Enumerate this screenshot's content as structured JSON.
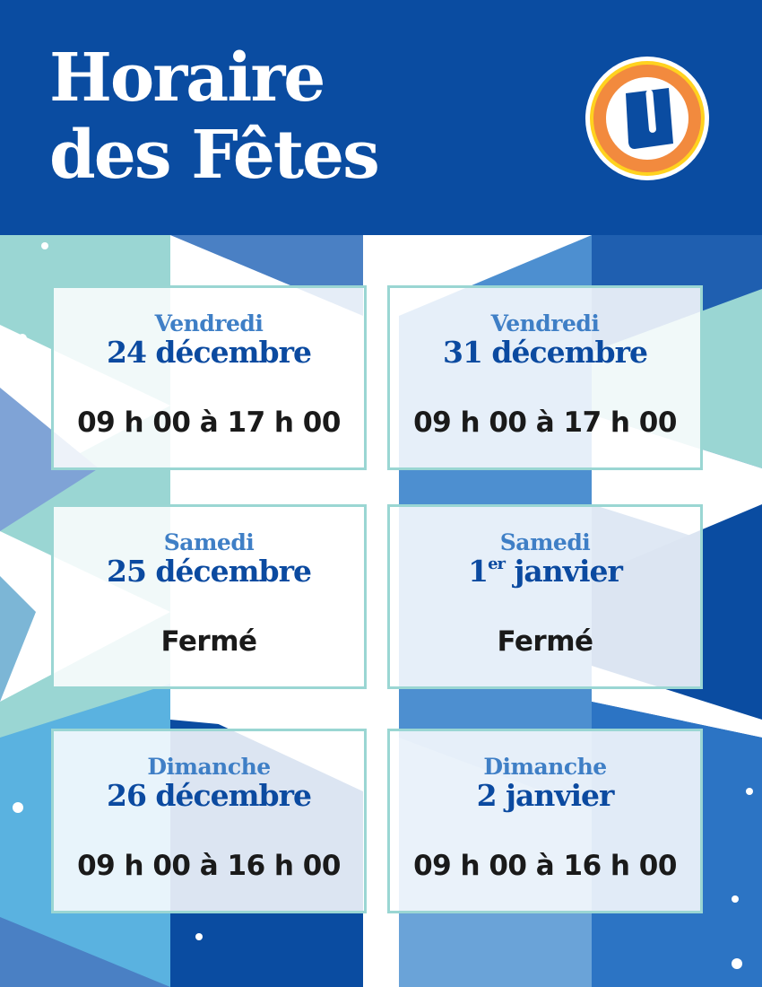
{
  "header": {
    "title_line1": "Horaire",
    "title_line2": "des Fêtes",
    "logo_letter": "U"
  },
  "colors": {
    "brand_blue": "#0a4ca1",
    "day_blue": "#3f7fc6",
    "date_blue": "#0b4aa0",
    "card_border": "#9ad6d3",
    "logo_orange": "#f28a3e",
    "logo_yellow": "#ffd21f"
  },
  "cards": [
    {
      "day": "Vendredi",
      "date": "24 décembre",
      "hours": "09 h 00 à 17 h 00"
    },
    {
      "day": "Vendredi",
      "date": "31 décembre",
      "hours": "09 h 00 à 17 h 00"
    },
    {
      "day": "Samedi",
      "date": "25 décembre",
      "hours": "Fermé"
    },
    {
      "day": "Samedi",
      "date_num": "1",
      "date_sup": "er",
      "date_rest": " janvier",
      "hours": "Fermé"
    },
    {
      "day": "Dimanche",
      "date": "26 décembre",
      "hours": "09 h 00 à 16 h 00"
    },
    {
      "day": "Dimanche",
      "date": "2 janvier",
      "hours": "09 h 00 à 16 h 00"
    }
  ]
}
